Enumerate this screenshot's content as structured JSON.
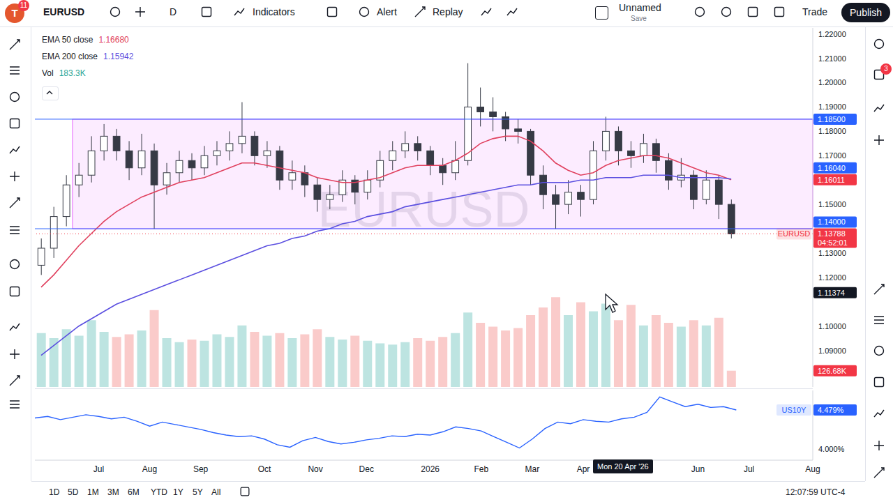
{
  "ui": {
    "avatar": "T",
    "avatar_badge": "11",
    "symbol": "EURUSD",
    "interval": "D",
    "indicators": "Indicators",
    "alert": "Alert",
    "replay": "Replay",
    "layout_name": "Unnamed",
    "layout_status": "Save",
    "trade": "Trade",
    "publish": "Publish",
    "notification_badge": "3",
    "ranges": [
      "1D",
      "5D",
      "1M",
      "3M",
      "6M",
      "YTD",
      "1Y",
      "5Y",
      "All"
    ],
    "clock": "12:07:59 UTC-4",
    "crosshair_date": "Mon 20 Apr '26"
  },
  "chart_data": [
    {
      "type": "candlestick",
      "title": "EURUSD",
      "categories": [
        null,
        null,
        null,
        null,
        null,
        "Jul",
        null,
        null,
        null,
        "Aug",
        null,
        null,
        null,
        "Sep",
        null,
        null,
        null,
        null,
        "Oct",
        null,
        null,
        null,
        "Nov",
        null,
        null,
        null,
        "Dec",
        null,
        null,
        null,
        null,
        "2026",
        null,
        null,
        null,
        "Feb",
        null,
        null,
        null,
        "Mar",
        null,
        null,
        null,
        "Apr",
        null,
        null,
        null,
        null,
        null,
        null,
        null,
        null,
        "Jun",
        null,
        null,
        null,
        "Jul",
        null,
        null,
        null,
        null,
        "Aug"
      ],
      "series": [
        {
          "type": "candlestick",
          "color": "#363a45",
          "open": [
            1.125,
            1.132,
            1.145,
            1.158,
            1.162,
            1.172,
            1.178,
            1.172,
            1.165,
            1.172,
            1.158,
            1.163,
            1.168,
            1.165,
            1.17,
            1.172,
            1.175,
            1.178,
            1.17,
            1.172,
            1.16,
            1.163,
            1.158,
            1.152,
            1.154,
            1.16,
            1.155,
            1.16,
            1.168,
            1.172,
            1.175,
            1.172,
            1.166,
            1.163,
            1.168,
            1.19,
            1.188,
            1.186,
            1.181,
            1.18,
            1.162,
            1.154,
            1.15,
            1.155,
            1.152,
            1.172,
            1.18,
            1.172,
            1.17,
            1.175,
            1.168,
            1.16,
            1.162,
            1.152,
            1.16,
            1.15,
            null,
            null,
            null,
            null,
            null,
            null
          ],
          "high": [
            1.136,
            1.149,
            1.162,
            1.167,
            1.178,
            1.183,
            1.181,
            1.176,
            1.179,
            1.175,
            1.167,
            1.172,
            1.171,
            1.174,
            1.176,
            1.18,
            1.192,
            1.18,
            1.176,
            1.174,
            1.168,
            1.166,
            1.161,
            1.158,
            1.164,
            1.162,
            1.164,
            1.172,
            1.176,
            1.18,
            1.178,
            1.174,
            1.169,
            1.176,
            1.208,
            1.198,
            1.194,
            1.188,
            1.185,
            1.181,
            1.166,
            1.158,
            1.16,
            1.158,
            1.176,
            1.186,
            1.182,
            1.176,
            1.179,
            1.177,
            1.171,
            1.169,
            1.164,
            1.164,
            1.162,
            1.152,
            null,
            null,
            null,
            null,
            null,
            null
          ],
          "low": [
            1.121,
            1.128,
            1.141,
            1.153,
            1.159,
            1.168,
            1.168,
            1.16,
            1.162,
            1.14,
            1.154,
            1.159,
            1.16,
            1.162,
            1.166,
            1.168,
            1.171,
            1.166,
            1.165,
            1.156,
            1.156,
            1.153,
            1.147,
            1.148,
            1.151,
            1.15,
            1.152,
            1.157,
            1.164,
            1.169,
            1.168,
            1.162,
            1.158,
            1.16,
            1.166,
            1.182,
            1.18,
            1.176,
            1.175,
            1.158,
            1.148,
            1.14,
            1.146,
            1.145,
            1.15,
            1.168,
            1.166,
            1.165,
            1.167,
            1.163,
            1.156,
            1.157,
            1.148,
            1.15,
            1.144,
            1.136,
            null,
            null,
            null,
            null,
            null,
            null
          ],
          "close": [
            1.132,
            1.145,
            1.158,
            1.162,
            1.172,
            1.178,
            1.172,
            1.165,
            1.172,
            1.158,
            1.163,
            1.168,
            1.165,
            1.17,
            1.172,
            1.175,
            1.178,
            1.17,
            1.172,
            1.16,
            1.163,
            1.158,
            1.152,
            1.154,
            1.16,
            1.155,
            1.16,
            1.168,
            1.172,
            1.175,
            1.172,
            1.166,
            1.163,
            1.168,
            1.19,
            1.188,
            1.186,
            1.181,
            1.18,
            1.162,
            1.154,
            1.15,
            1.155,
            1.152,
            1.172,
            1.18,
            1.172,
            1.17,
            1.175,
            1.168,
            1.16,
            1.162,
            1.152,
            1.16,
            1.15,
            1.13788,
            null,
            null,
            null,
            null,
            null,
            null
          ]
        },
        {
          "name": "EMA 50 close",
          "type": "line",
          "color": "#e0405e",
          "legend_value": "1.16680",
          "values": [
            1.116,
            1.121,
            1.127,
            1.133,
            1.138,
            1.143,
            1.147,
            1.15,
            1.153,
            1.155,
            1.157,
            1.159,
            1.16,
            1.161,
            1.163,
            1.165,
            1.167,
            1.167,
            1.166,
            1.165,
            1.164,
            1.163,
            1.161,
            1.16,
            1.159,
            1.159,
            1.16,
            1.161,
            1.163,
            1.165,
            1.166,
            1.166,
            1.166,
            1.168,
            1.171,
            1.175,
            1.177,
            1.178,
            1.178,
            1.176,
            1.172,
            1.167,
            1.164,
            1.162,
            1.163,
            1.166,
            1.168,
            1.169,
            1.17,
            1.17,
            1.169,
            1.167,
            1.165,
            1.163,
            1.162,
            1.16011,
            null,
            null,
            null,
            null,
            null,
            null
          ]
        },
        {
          "name": "EMA 200 close",
          "type": "line",
          "color": "#5b4fe0",
          "legend_value": "1.15942",
          "values": [
            1.088,
            1.092,
            1.096,
            1.1,
            1.103,
            1.106,
            1.109,
            1.111,
            1.113,
            1.115,
            1.117,
            1.119,
            1.121,
            1.123,
            1.125,
            1.127,
            1.129,
            1.131,
            1.133,
            1.134,
            1.136,
            1.137,
            1.139,
            1.14,
            1.142,
            1.143,
            1.145,
            1.146,
            1.147,
            1.149,
            1.15,
            1.151,
            1.152,
            1.153,
            1.154,
            1.155,
            1.156,
            1.157,
            1.158,
            1.158,
            1.159,
            1.159,
            1.159,
            1.16,
            1.16,
            1.161,
            1.161,
            1.161,
            1.162,
            1.162,
            1.162,
            1.161,
            1.161,
            1.161,
            1.161,
            1.1604,
            null,
            null,
            null,
            null,
            null,
            null
          ]
        },
        {
          "name": "Vol",
          "type": "bar",
          "axis": "y2",
          "color": "#26a69a",
          "legend_value": "183.3K",
          "values": [
            420000,
            380000,
            450000,
            400000,
            520000,
            430000,
            390000,
            410000,
            440000,
            600000,
            380000,
            350000,
            370000,
            360000,
            410000,
            390000,
            480000,
            430000,
            400000,
            420000,
            380000,
            410000,
            450000,
            390000,
            370000,
            400000,
            360000,
            340000,
            330000,
            350000,
            380000,
            360000,
            390000,
            420000,
            580000,
            500000,
            470000,
            440000,
            460000,
            560000,
            620000,
            700000,
            560000,
            660000,
            590000,
            650000,
            520000,
            640000,
            480000,
            560000,
            500000,
            470000,
            520000,
            480000,
            540000,
            126680,
            null,
            null,
            null,
            null,
            null,
            null
          ]
        }
      ],
      "ylim": [
        1.075,
        1.2225
      ],
      "yticks": [
        {
          "value": 1.09,
          "label": "1.09000"
        },
        {
          "value": 1.1,
          "label": "1.10000"
        },
        {
          "value": 1.12,
          "label": "1.12000"
        },
        {
          "value": 1.13,
          "label": "1.13000"
        },
        {
          "value": 1.15,
          "label": "1.15000"
        },
        {
          "value": 1.17,
          "label": "1.17000"
        },
        {
          "value": 1.18,
          "label": "1.18000"
        },
        {
          "value": 1.19,
          "label": "1.19000"
        },
        {
          "value": 1.2,
          "label": "1.20000"
        },
        {
          "value": 1.21,
          "label": "1.21000"
        },
        {
          "value": 1.22,
          "label": "1.22000"
        }
      ],
      "y2lim": [
        0,
        2800000
      ],
      "y2ticks": [],
      "grid": false,
      "legend": "top-left",
      "tick_labels": "y",
      "annotations": [
        {
          "type": "box",
          "y1": 1.14,
          "y2": 1.185,
          "from_index": 3,
          "to_index": 61,
          "color": "#e040fb"
        }
      ],
      "levels": [
        {
          "value": 1.185,
          "label": "1.18500",
          "color": "#2962ff",
          "line_style": "solid"
        },
        {
          "value": 1.1604,
          "label": "1.16040",
          "color": "#2962ff"
        },
        {
          "value": 1.16011,
          "label": "1.16011",
          "color": "#f23645"
        },
        {
          "value": 1.14,
          "label": "1.14000",
          "color": "#2962ff",
          "line_style": "solid"
        },
        {
          "value": 1.13788,
          "label": "1.13788",
          "name": "EURUSD",
          "countdown": "04:52:01",
          "color": "#f23645",
          "line_style": "dotted"
        },
        {
          "value": 1.11374,
          "label": "1.11374",
          "color": "#131722"
        }
      ],
      "y2_levels": [
        {
          "value": 126680,
          "label": "126.68K",
          "color": "#f23645"
        }
      ]
    },
    {
      "type": "line",
      "categories": [
        null,
        null,
        null,
        null,
        null,
        "Jul",
        null,
        null,
        null,
        "Aug",
        null,
        null,
        null,
        "Sep",
        null,
        null,
        null,
        null,
        "Oct",
        null,
        null,
        null,
        "Nov",
        null,
        null,
        null,
        "Dec",
        null,
        null,
        null,
        null,
        "2026",
        null,
        null,
        null,
        "Feb",
        null,
        null,
        null,
        "Mar",
        null,
        null,
        null,
        "Apr",
        null,
        null,
        null,
        null,
        null,
        null,
        null,
        null,
        "Jun",
        null,
        null,
        null,
        "Jul",
        null,
        null,
        null,
        null,
        "Aug"
      ],
      "series": [
        {
          "name": "US10Y",
          "color": "#2962ff",
          "values": [
            4.38,
            4.4,
            4.36,
            4.39,
            4.42,
            4.4,
            4.37,
            4.39,
            4.34,
            4.28,
            4.33,
            4.3,
            4.27,
            4.24,
            4.2,
            4.17,
            4.15,
            4.16,
            4.12,
            4.05,
            4.02,
            4.1,
            4.14,
            4.09,
            4.06,
            4.08,
            4.11,
            4.13,
            4.16,
            4.15,
            4.18,
            4.17,
            4.21,
            4.27,
            4.25,
            4.22,
            4.15,
            4.08,
            4.01,
            4.12,
            4.25,
            4.33,
            4.31,
            4.36,
            4.34,
            4.33,
            4.37,
            4.39,
            4.45,
            4.64,
            4.58,
            4.52,
            4.55,
            4.51,
            4.52,
            4.479,
            null,
            null,
            null,
            null,
            null,
            null
          ]
        }
      ],
      "ylim": [
        3.86,
        4.72
      ],
      "yticks": [
        {
          "value": 4,
          "label": "4.000%"
        }
      ],
      "grid": false,
      "levels": [
        {
          "value": 4.479,
          "label": "4.479%",
          "color": "#2962ff"
        }
      ]
    }
  ]
}
